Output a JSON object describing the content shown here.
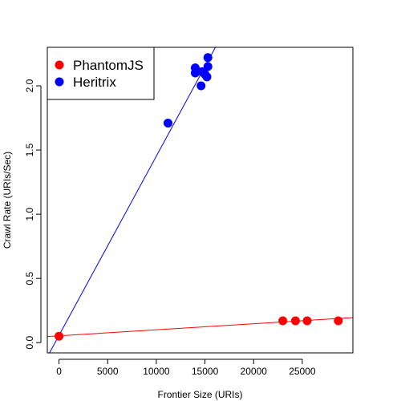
{
  "chart_data": {
    "type": "scatter",
    "title": "",
    "xlabel": "Frontier Size (URIs)",
    "ylabel": "Crawl Rate (URIs/Sec)",
    "xlim": [
      -1200,
      30200
    ],
    "ylim": [
      -0.08,
      2.3
    ],
    "xticks": [
      0,
      5000,
      10000,
      15000,
      20000,
      25000
    ],
    "yticks": [
      0.0,
      0.5,
      1.0,
      1.5,
      2.0
    ],
    "xtick_labels": [
      "0",
      "5000",
      "10000",
      "15000",
      "20000",
      "25000"
    ],
    "ytick_labels": [
      "0.0",
      "0.5",
      "1.0",
      "1.5",
      "2.0"
    ],
    "grid": false,
    "legend_position": "top-left",
    "series": [
      {
        "name": "PhantomJS",
        "color": "#ff0000",
        "points": [
          {
            "x": 0,
            "y": 0.05
          },
          {
            "x": 23000,
            "y": 0.17
          },
          {
            "x": 24300,
            "y": 0.17
          },
          {
            "x": 25500,
            "y": 0.17
          },
          {
            "x": 28700,
            "y": 0.17
          }
        ],
        "fit": {
          "intercept": 0.053,
          "slope": 4.7e-06
        }
      },
      {
        "name": "Heritrix",
        "color": "#0000ff",
        "points": [
          {
            "x": 11200,
            "y": 1.71
          },
          {
            "x": 14000,
            "y": 2.14
          },
          {
            "x": 14000,
            "y": 2.1
          },
          {
            "x": 14600,
            "y": 2.0
          },
          {
            "x": 14700,
            "y": 2.11
          },
          {
            "x": 15000,
            "y": 2.09
          },
          {
            "x": 15200,
            "y": 2.07
          },
          {
            "x": 15300,
            "y": 2.15
          },
          {
            "x": 15300,
            "y": 2.22
          }
        ],
        "fit": {
          "intercept": 0.056,
          "slope": 0.0001396
        }
      }
    ]
  }
}
